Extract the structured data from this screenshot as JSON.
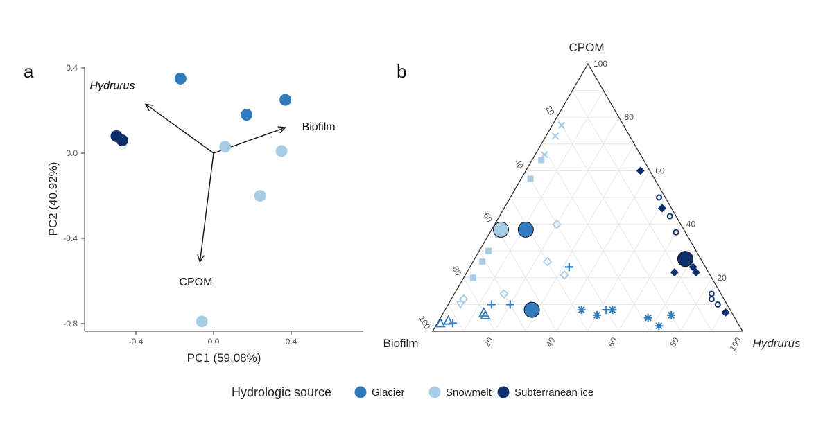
{
  "colors": {
    "glacier": "#2f7bbd",
    "snowmelt": "#a6cde5",
    "subterranean": "#0d2f6b",
    "axis": "#333333",
    "grid": "#e6e6e6"
  },
  "panel_a": {
    "label": "a",
    "xlabel": "PC1 (59.08%)",
    "ylabel": "PC2 (40.92%)",
    "xticks": [
      "-0.4",
      "0.0",
      "0.4"
    ],
    "yticks": [
      "0.4",
      "0.0",
      "-0.4",
      "-0.8"
    ],
    "loadings": [
      {
        "label": "Hydrurus",
        "italic": true
      },
      {
        "label": "Biofilm",
        "italic": false
      },
      {
        "label": "CPOM",
        "italic": false
      }
    ]
  },
  "panel_b": {
    "label": "b",
    "top_label": "CPOM",
    "left_label": "Biofilm",
    "right_label": "Hydrurus",
    "right_label_italic": true,
    "right_edge_ticks": [
      "100",
      "80",
      "60",
      "40",
      "20"
    ],
    "left_edge_ticks": [
      "20",
      "40",
      "60",
      "80",
      "100"
    ],
    "bottom_edge_ticks": [
      "20",
      "40",
      "60",
      "80",
      "100"
    ]
  },
  "legend": {
    "title": "Hydrologic source",
    "items": [
      {
        "label": "Glacier",
        "color": "#2f7bbd"
      },
      {
        "label": "Snowmelt",
        "color": "#a6cde5"
      },
      {
        "label": "Subterranean ice",
        "color": "#0d2f6b"
      }
    ]
  },
  "chart_data": [
    {
      "type": "scatter",
      "panel": "a",
      "xlabel": "PC1 (59.08%)",
      "ylabel": "PC2 (40.92%)",
      "xlim": [
        -0.6,
        0.7
      ],
      "ylim": [
        -0.83,
        0.42
      ],
      "series": [
        {
          "name": "Glacier",
          "color": "#2f7bbd",
          "points": [
            [
              -0.17,
              0.35
            ],
            [
              0.17,
              0.18
            ],
            [
              0.37,
              0.25
            ]
          ]
        },
        {
          "name": "Snowmelt",
          "color": "#a6cde5",
          "points": [
            [
              0.06,
              0.03
            ],
            [
              0.35,
              0.01
            ],
            [
              0.24,
              -0.2
            ],
            [
              -0.06,
              -0.79
            ]
          ]
        },
        {
          "name": "Subterranean ice",
          "color": "#0d2f6b",
          "points": [
            [
              -0.5,
              0.08
            ],
            [
              -0.47,
              0.06
            ]
          ]
        }
      ],
      "loadings": [
        {
          "label": "Hydrurus",
          "x": -0.35,
          "y": 0.23
        },
        {
          "label": "Biofilm",
          "x": 0.37,
          "y": 0.12
        },
        {
          "label": "CPOM",
          "x": -0.07,
          "y": -0.51
        }
      ],
      "loading_origin": [
        0.0,
        0.0
      ]
    },
    {
      "type": "scatter",
      "panel": "b",
      "subtype": "ternary",
      "components": [
        "CPOM",
        "Biofilm",
        "Hydrurus"
      ],
      "series": [
        {
          "name": "Glacier",
          "color": "#2f7bbd",
          "points": [
            {
              "cpom": 38,
              "biofilm": 51,
              "hydrurus": 11,
              "shape": "circle-large"
            },
            {
              "cpom": 8,
              "biofilm": 64,
              "hydrurus": 28,
              "shape": "circle-large"
            },
            {
              "cpom": 24,
              "biofilm": 44,
              "hydrurus": 32,
              "shape": "plus"
            },
            {
              "cpom": 10,
              "biofilm": 76,
              "hydrurus": 14,
              "shape": "plus"
            },
            {
              "cpom": 10,
              "biofilm": 70,
              "hydrurus": 20,
              "shape": "plus"
            },
            {
              "cpom": 3,
              "biofilm": 92,
              "hydrurus": 5,
              "shape": "plus"
            },
            {
              "cpom": 8,
              "biofilm": 40,
              "hydrurus": 52,
              "shape": "plus"
            },
            {
              "cpom": 8,
              "biofilm": 38,
              "hydrurus": 54,
              "shape": "plus"
            },
            {
              "cpom": 8,
              "biofilm": 48,
              "hydrurus": 44,
              "shape": "asterisk"
            },
            {
              "cpom": 6,
              "biofilm": 44,
              "hydrurus": 50,
              "shape": "asterisk"
            },
            {
              "cpom": 8,
              "biofilm": 38,
              "hydrurus": 54,
              "shape": "asterisk"
            },
            {
              "cpom": 5,
              "biofilm": 28,
              "hydrurus": 67,
              "shape": "asterisk"
            },
            {
              "cpom": 6,
              "biofilm": 20,
              "hydrurus": 74,
              "shape": "asterisk"
            },
            {
              "cpom": 2,
              "biofilm": 26,
              "hydrurus": 72,
              "shape": "asterisk"
            },
            {
              "cpom": 6,
              "biofilm": 80,
              "hydrurus": 14,
              "shape": "triangle-open"
            },
            {
              "cpom": 7,
              "biofilm": 80,
              "hydrurus": 13,
              "shape": "triangle-open"
            },
            {
              "cpom": 3,
              "biofilm": 96,
              "hydrurus": 1,
              "shape": "triangle-open"
            },
            {
              "cpom": 4,
              "biofilm": 93,
              "hydrurus": 3,
              "shape": "triangle-open"
            }
          ]
        },
        {
          "name": "Snowmelt",
          "color": "#a6cde5",
          "points": [
            {
              "cpom": 38,
              "biofilm": 59,
              "hydrurus": 3,
              "shape": "circle-large"
            },
            {
              "cpom": 77,
              "biofilm": 20,
              "hydrurus": 3,
              "shape": "cross"
            },
            {
              "cpom": 73,
              "biofilm": 24,
              "hydrurus": 3,
              "shape": "cross"
            },
            {
              "cpom": 66,
              "biofilm": 31,
              "hydrurus": 3,
              "shape": "cross"
            },
            {
              "cpom": 64,
              "biofilm": 33,
              "hydrurus": 3,
              "shape": "square"
            },
            {
              "cpom": 57,
              "biofilm": 40,
              "hydrurus": 3,
              "shape": "square"
            },
            {
              "cpom": 30,
              "biofilm": 67,
              "hydrurus": 3,
              "shape": "square"
            },
            {
              "cpom": 26,
              "biofilm": 71,
              "hydrurus": 3,
              "shape": "square"
            },
            {
              "cpom": 20,
              "biofilm": 77,
              "hydrurus": 3,
              "shape": "square"
            },
            {
              "cpom": 36,
              "biofilm": 61,
              "hydrurus": 3,
              "shape": "square"
            },
            {
              "cpom": 40,
              "biofilm": 40,
              "hydrurus": 20,
              "shape": "diamond-open"
            },
            {
              "cpom": 26,
              "biofilm": 50,
              "hydrurus": 24,
              "shape": "diamond-open"
            },
            {
              "cpom": 21,
              "biofilm": 47,
              "hydrurus": 32,
              "shape": "diamond-open"
            },
            {
              "cpom": 14,
              "biofilm": 70,
              "hydrurus": 16,
              "shape": "diamond-open"
            },
            {
              "cpom": 12,
              "biofilm": 84,
              "hydrurus": 4,
              "shape": "diamond-open"
            },
            {
              "cpom": 10,
              "biofilm": 86,
              "hydrurus": 4,
              "shape": "triangle-down-open"
            }
          ]
        },
        {
          "name": "Subterranean ice",
          "color": "#0d2f6b",
          "points": [
            {
              "cpom": 27,
              "biofilm": 5,
              "hydrurus": 68,
              "shape": "circle-large"
            },
            {
              "cpom": 60,
              "biofilm": 3,
              "hydrurus": 37,
              "shape": "diamond"
            },
            {
              "cpom": 46,
              "biofilm": 3,
              "hydrurus": 51,
              "shape": "diamond"
            },
            {
              "cpom": 22,
              "biofilm": 11,
              "hydrurus": 67,
              "shape": "diamond"
            },
            {
              "cpom": 24,
              "biofilm": 4,
              "hydrurus": 72,
              "shape": "diamond"
            },
            {
              "cpom": 22,
              "biofilm": 4,
              "hydrurus": 74,
              "shape": "diamond"
            },
            {
              "cpom": 7,
              "biofilm": 2,
              "hydrurus": 91,
              "shape": "diamond"
            },
            {
              "cpom": 50,
              "biofilm": 2,
              "hydrurus": 48,
              "shape": "circle-open"
            },
            {
              "cpom": 43,
              "biofilm": 2,
              "hydrurus": 55,
              "shape": "circle-open"
            },
            {
              "cpom": 37,
              "biofilm": 3,
              "hydrurus": 60,
              "shape": "circle-open"
            },
            {
              "cpom": 14,
              "biofilm": 3,
              "hydrurus": 83,
              "shape": "circle-open"
            },
            {
              "cpom": 12,
              "biofilm": 4,
              "hydrurus": 84,
              "shape": "circle-open"
            },
            {
              "cpom": 10,
              "biofilm": 3,
              "hydrurus": 87,
              "shape": "circle-open"
            }
          ]
        }
      ]
    }
  ]
}
